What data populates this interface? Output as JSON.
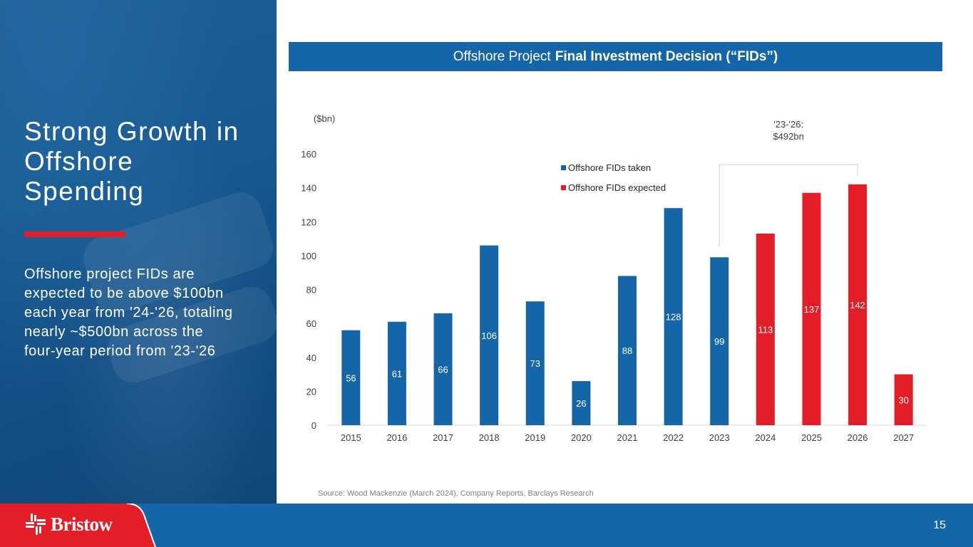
{
  "slide": {
    "title": "Strong Growth in Offshore Spending",
    "body": "Offshore project FIDs are expected to be above $100bn each year from '24-'26, totaling nearly ~$500bn across the four-year period from '23-'26",
    "page_number": "15",
    "source": "Source: Wood Mackenzie (March 2024), Company Reports, Barclays Research",
    "brand": "Bristow"
  },
  "banner": {
    "light": "Offshore Project",
    "bold": "Final Investment Decision (“FIDs”)"
  },
  "colors": {
    "taken": "#1466a9",
    "expected": "#e31e26",
    "accent_red": "#e31e26",
    "footer_blue": "#1466a9"
  },
  "chart_data": {
    "type": "bar",
    "title": "Offshore Project Final Investment Decision (“FIDs”)",
    "ylabel": "($bn)",
    "xlabel": "",
    "ylim": [
      0,
      160
    ],
    "yticks": [
      0,
      20,
      40,
      60,
      80,
      100,
      120,
      140,
      160
    ],
    "grid": false,
    "legend_position": "top-center",
    "categories": [
      "2015",
      "2016",
      "2017",
      "2018",
      "2019",
      "2020",
      "2021",
      "2022",
      "2023",
      "2024",
      "2025",
      "2026",
      "2027"
    ],
    "series": [
      {
        "name": "Offshore FIDs taken",
        "color": "#1466a9",
        "values": [
          56,
          61,
          66,
          106,
          73,
          26,
          88,
          128,
          99,
          null,
          null,
          null,
          null
        ]
      },
      {
        "name": "Offshore FIDs expected",
        "color": "#e31e26",
        "values": [
          null,
          null,
          null,
          null,
          null,
          null,
          null,
          null,
          null,
          113,
          137,
          142,
          30
        ]
      }
    ],
    "annotation": {
      "text_line1": "'23-'26:",
      "text_line2": "$492bn",
      "range": [
        "2023",
        "2026"
      ]
    }
  }
}
